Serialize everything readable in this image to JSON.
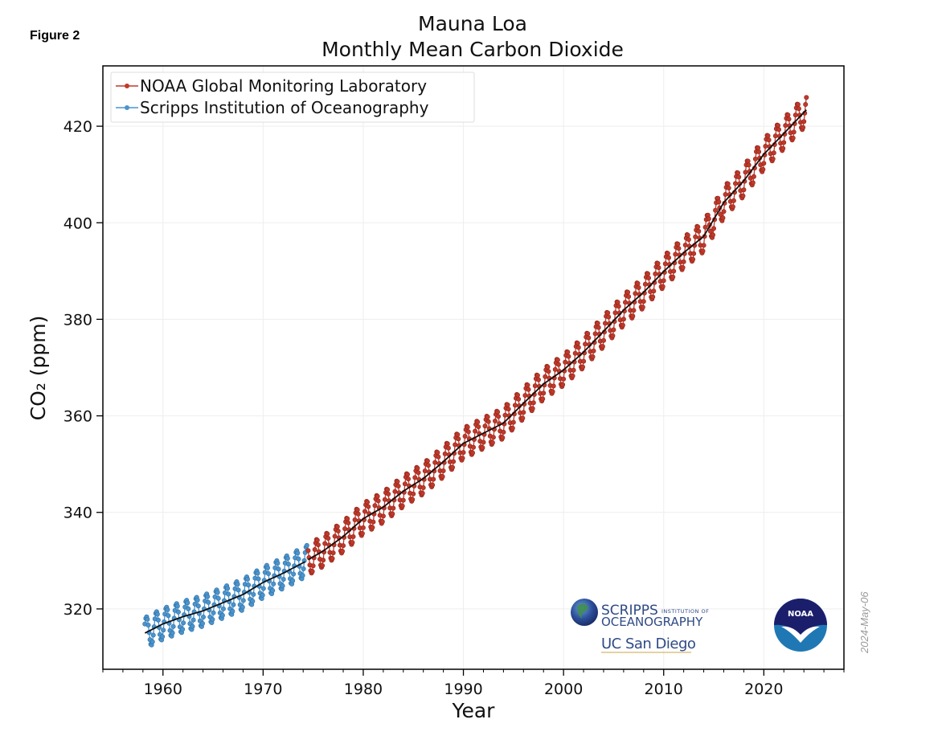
{
  "figure_label": "Figure 2",
  "date_stamp": "2024-May-06",
  "logos": {
    "scripps_line1": "SCRIPPS",
    "scripps_line1_small": "INSTITUTION OF",
    "scripps_line2": "OCEANOGRAPHY",
    "ucsd": "UC San Diego",
    "noaa": "NOAA"
  },
  "colors": {
    "noaa_series": "#c0392b",
    "scripps_series": "#4a94cf",
    "trend_line": "#111111",
    "grid": "#eeeeee"
  },
  "chart_data": {
    "type": "line",
    "title": "Mauna Loa",
    "subtitle": "Monthly Mean Carbon Dioxide",
    "xlabel": "Year",
    "ylabel": "CO₂ (ppm)",
    "xlim": [
      1954,
      2028
    ],
    "ylim": [
      307.5,
      432.5
    ],
    "xticks": [
      1960,
      1970,
      1980,
      1990,
      2000,
      2010,
      2020
    ],
    "yticks": [
      320,
      340,
      360,
      380,
      400,
      420
    ],
    "grid": true,
    "legend_position": "top-left",
    "seasonal_amplitude_ppm": 3.2,
    "series": [
      {
        "name": "NOAA Global Monitoring Laboratory",
        "marker": "circle",
        "color": "#c0392b",
        "x_range": [
          1974.5,
          2024.3
        ],
        "trend_years": [
          1974.5,
          1976,
          1978,
          1980,
          1982,
          1984,
          1986,
          1988,
          1990,
          1992,
          1994,
          1996,
          1998,
          2000,
          2002,
          2004,
          2006,
          2008,
          2010,
          2012,
          2014,
          2016,
          2018,
          2020,
          2022,
          2024.3
        ],
        "trend_values": [
          330.2,
          332.0,
          335.0,
          338.7,
          341.1,
          344.4,
          347.0,
          350.5,
          354.3,
          356.4,
          358.5,
          362.6,
          366.6,
          369.5,
          373.2,
          377.5,
          381.9,
          385.6,
          389.9,
          393.8,
          397.2,
          404.2,
          408.7,
          414.2,
          418.5,
          423.5
        ]
      },
      {
        "name": "Scripps Institution of Oceanography",
        "marker": "circle",
        "color": "#4a94cf",
        "x_range": [
          1958.2,
          1974.4
        ],
        "trend_years": [
          1958.2,
          1960,
          1962,
          1964,
          1966,
          1968,
          1970,
          1972,
          1974.4
        ],
        "trend_values": [
          315.0,
          316.9,
          318.4,
          319.6,
          321.3,
          323.0,
          325.5,
          327.4,
          330.0
        ]
      }
    ]
  }
}
